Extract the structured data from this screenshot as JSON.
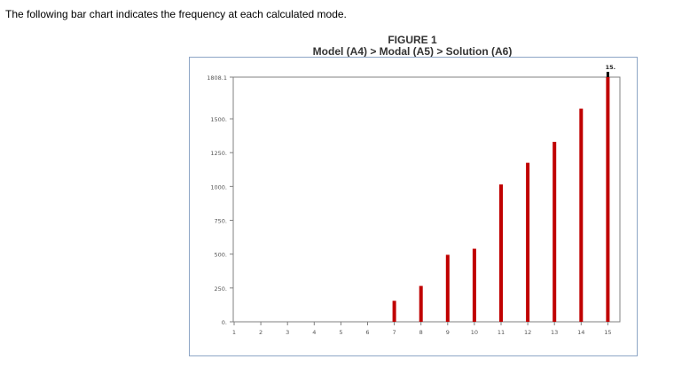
{
  "intro_text": "The following bar chart indicates the frequency at each calculated mode.",
  "figure": {
    "title": "FIGURE 1",
    "subtitle": "Model (A4) > Modal (A5) > Solution (A6)"
  },
  "colors": {
    "bar": "#c00000",
    "frame": "#8ea6c6",
    "axis": "#808080"
  },
  "chart_data": {
    "type": "bar",
    "title": "FIGURE 1",
    "subtitle": "Model (A4) > Modal (A5) > Solution (A6)",
    "xlabel": "",
    "ylabel": "",
    "categories": [
      "1",
      "2",
      "3",
      "4",
      "5",
      "6",
      "7",
      "8",
      "9",
      "10",
      "11",
      "12",
      "13",
      "14",
      "15"
    ],
    "values": [
      0,
      0,
      0,
      0,
      0,
      0,
      155,
      265,
      495,
      540,
      1015,
      1175,
      1330,
      1575,
      1808.1
    ],
    "ylim": [
      0,
      1808.1
    ],
    "y_ticks": [
      "0.",
      "250.",
      "500.",
      "750.",
      "1000.",
      "1250.",
      "1500.",
      "1808.1"
    ],
    "y_tick_values": [
      0,
      250,
      500,
      750,
      1000,
      1250,
      1500,
      1808.1
    ],
    "highlight_label": "15.",
    "grid": false,
    "legend": "none"
  }
}
